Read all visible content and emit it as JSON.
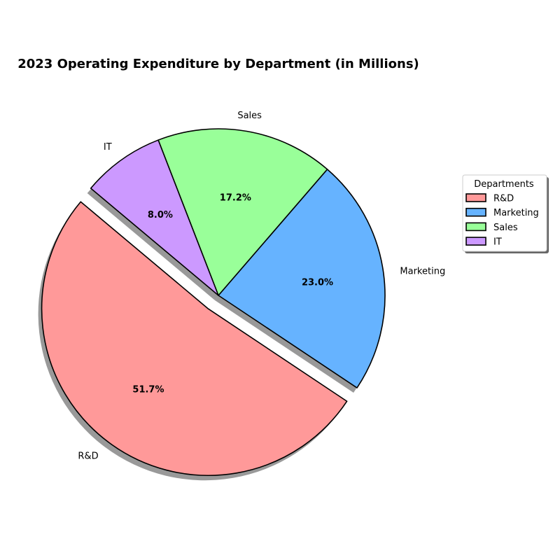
{
  "chart_data": {
    "type": "pie",
    "title": "2023 Operating Expenditure by Department (in Millions)",
    "categories": [
      "R&D",
      "Marketing",
      "Sales",
      "IT"
    ],
    "values": [
      51.7,
      23.0,
      17.2,
      8.0
    ],
    "percent_labels": [
      "51.7%",
      "23.0%",
      "17.2%",
      "8.0%"
    ],
    "colors": [
      "#ff9999",
      "#66b3ff",
      "#99ff99",
      "#cc99ff"
    ],
    "exploded": [
      "R&D"
    ],
    "shadow": true,
    "legend": {
      "title": "Departments",
      "placement": "right",
      "entries": [
        "R&D",
        "Marketing",
        "Sales",
        "IT"
      ]
    }
  }
}
